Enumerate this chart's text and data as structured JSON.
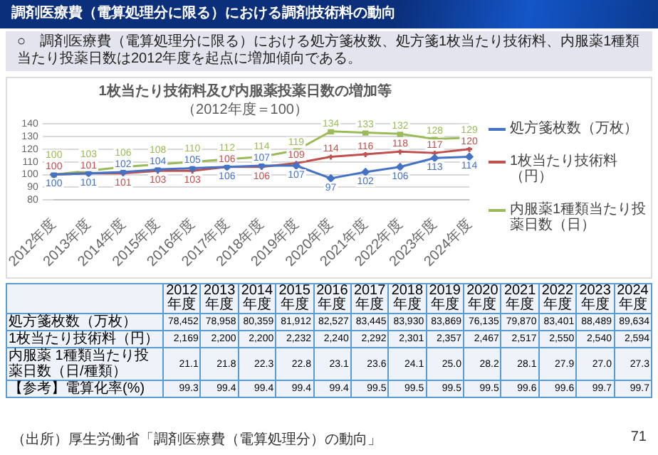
{
  "chart_data": [
    {
      "type": "line",
      "title": "1枚当たり技術料及び内服薬投薬日数の増加等",
      "subtitle": "（2012年度＝100）",
      "categories": [
        "2012年度",
        "2013年度",
        "2014年度",
        "2015年度",
        "2016年度",
        "2017年度",
        "2018年度",
        "2019年度",
        "2020年度",
        "2021年度",
        "2022年度",
        "2023年度",
        "2024年度"
      ],
      "series": [
        {
          "name": "処方箋枚数（万枚）",
          "color": "#4472c4",
          "marker": "diamond",
          "values": [
            100,
            101,
            102,
            104,
            105,
            106,
            107,
            107,
            97,
            102,
            106,
            113,
            114
          ]
        },
        {
          "name": "1枚当たり技術料（円）",
          "color": "#c0504d",
          "marker": "cross",
          "values": [
            100,
            101,
            101,
            103,
            103,
            106,
            106,
            109,
            114,
            116,
            118,
            117,
            120
          ]
        },
        {
          "name": "内服薬1種類当たり投薬日数（日）",
          "color": "#9bbb59",
          "marker": "square",
          "values": [
            100,
            103,
            106,
            108,
            110,
            112,
            114,
            119,
            134,
            133,
            132,
            128,
            129
          ]
        }
      ],
      "ylim": [
        80,
        140
      ],
      "yticks": [
        80,
        90,
        100,
        110,
        120,
        130,
        140
      ],
      "grid": "y",
      "legend": "right",
      "data_labels": true,
      "annotations": [
        "調剤医療費（電算処理分に限る）における調剤技術料の動向",
        "○　調剤医療費（電算処理分に限る）における処方箋枚数、処方箋1枚当たり技術料、内服薬1種類当たり投薬日数は2012年度を起点に増加傾向である。"
      ]
    },
    {
      "type": "heatmap",
      "categories": [
        "2012年度",
        "2013年度",
        "2014年度",
        "2015年度",
        "2016年度",
        "2017年度",
        "2018年度",
        "2019年度",
        "2020年度",
        "2021年度",
        "2022年度",
        "2023年度",
        "2024年度"
      ],
      "y_categories": [
        "処方箋枚数（万枚）",
        "1枚当たり技術料（円）",
        "内服薬 1種類当たり投薬日数（日/種類）",
        "【参考】電算化率(%)"
      ],
      "cells": [
        [
          78452,
          78958,
          80359,
          81912,
          82527,
          83445,
          83930,
          83869,
          76135,
          79870,
          83401,
          88489,
          89634
        ],
        [
          2169,
          2200,
          2200,
          2232,
          2240,
          2292,
          2301,
          2357,
          2467,
          2517,
          2550,
          2540,
          2594
        ],
        [
          21.1,
          21.8,
          22.3,
          22.8,
          23.1,
          23.6,
          24.1,
          25.0,
          28.2,
          28.1,
          27.9,
          27.0,
          27.3
        ],
        [
          99.3,
          99.4,
          99.4,
          99.4,
          99.4,
          99.5,
          99.5,
          99.5,
          99.5,
          99.6,
          99.6,
          99.7,
          99.7
        ]
      ],
      "cell_labels": [
        [
          "78,452",
          "78,958",
          "80,359",
          "81,912",
          "82,527",
          "83,445",
          "83,930",
          "83,869",
          "76,135",
          "79,870",
          "83,401",
          "88,489",
          "89,634"
        ],
        [
          "2,169",
          "2,200",
          "2,200",
          "2,232",
          "2,240",
          "2,292",
          "2,301",
          "2,357",
          "2,467",
          "2,517",
          "2,550",
          "2,540",
          "2,594"
        ],
        [
          "21.1",
          "21.8",
          "22.3",
          "22.8",
          "23.1",
          "23.6",
          "24.1",
          "25.0",
          "28.2",
          "28.1",
          "27.9",
          "27.0",
          "27.3"
        ],
        [
          "99.3",
          "99.4",
          "99.4",
          "99.4",
          "99.4",
          "99.5",
          "99.5",
          "99.5",
          "99.5",
          "99.6",
          "99.6",
          "99.7",
          "99.7"
        ]
      ],
      "annotations": [
        "（出所）厚生労働省「調剤医療費（電算処理分）の動向」",
        "71"
      ]
    }
  ]
}
